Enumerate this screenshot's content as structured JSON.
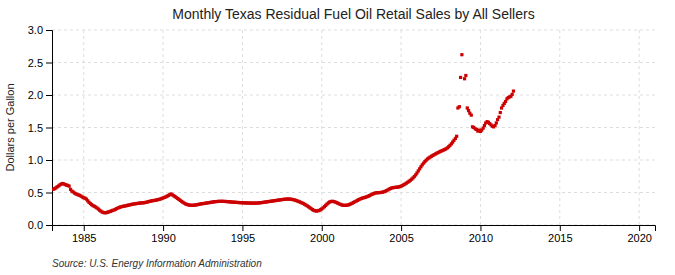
{
  "chart_data": {
    "type": "scatter",
    "title": "Monthly Texas Residual Fuel Oil Retail Sales by All Sellers",
    "ylabel": "Dollars per Gallon",
    "annotation": "Source: U.S. Energy Information Administration",
    "color": "#cc0000",
    "marker": "square",
    "grid": true,
    "xlim": [
      1983,
      2021
    ],
    "ylim": [
      0.0,
      3.0
    ],
    "xticks": [
      1985,
      1990,
      1995,
      2000,
      2005,
      2010,
      2015,
      2020
    ],
    "yticks": [
      {
        "value": 0.0,
        "label": "0.0"
      },
      0.5,
      {
        "value": 1.0,
        "label": "1.0"
      },
      1.5,
      {
        "value": 2.0,
        "label": "2.0"
      },
      2.5,
      {
        "value": 3.0,
        "label": "3.0"
      }
    ],
    "x": [
      1983.08,
      1983.17,
      1983.25,
      1983.33,
      1983.42,
      1983.5,
      1983.58,
      1983.67,
      1983.75,
      1983.83,
      1983.92,
      1984.0,
      1984.08,
      1984.17,
      1984.25,
      1984.33,
      1984.42,
      1984.5,
      1984.58,
      1984.67,
      1984.75,
      1984.83,
      1984.92,
      1985.0,
      1985.08,
      1985.17,
      1985.25,
      1985.33,
      1985.42,
      1985.5,
      1985.58,
      1985.67,
      1985.75,
      1985.83,
      1985.92,
      1986.0,
      1986.08,
      1986.17,
      1986.25,
      1986.33,
      1986.42,
      1986.5,
      1986.58,
      1986.67,
      1986.75,
      1986.83,
      1986.92,
      1987.0,
      1987.08,
      1987.17,
      1987.25,
      1987.33,
      1987.42,
      1987.5,
      1987.58,
      1987.67,
      1987.75,
      1987.83,
      1987.92,
      1988.0,
      1988.08,
      1988.17,
      1988.25,
      1988.33,
      1988.42,
      1988.5,
      1988.58,
      1988.67,
      1988.75,
      1988.83,
      1988.92,
      1989.0,
      1989.08,
      1989.17,
      1989.25,
      1989.33,
      1989.42,
      1989.5,
      1989.58,
      1989.67,
      1989.75,
      1989.83,
      1989.92,
      1990.0,
      1990.08,
      1990.17,
      1990.25,
      1990.33,
      1990.42,
      1990.5,
      1990.58,
      1990.67,
      1990.75,
      1990.83,
      1990.92,
      1991.0,
      1991.08,
      1991.17,
      1991.25,
      1991.33,
      1991.42,
      1991.5,
      1991.58,
      1991.67,
      1991.75,
      1991.83,
      1991.92,
      1992.0,
      1992.08,
      1992.17,
      1992.25,
      1992.33,
      1992.42,
      1992.5,
      1992.58,
      1992.67,
      1992.75,
      1992.83,
      1992.92,
      1993.0,
      1993.08,
      1993.17,
      1993.25,
      1993.33,
      1993.42,
      1993.5,
      1993.58,
      1993.67,
      1993.75,
      1993.83,
      1993.92,
      1994.0,
      1994.08,
      1994.17,
      1994.25,
      1994.33,
      1994.42,
      1994.5,
      1994.58,
      1994.67,
      1994.75,
      1994.83,
      1994.92,
      1995.0,
      1995.08,
      1995.17,
      1995.25,
      1995.33,
      1995.42,
      1995.5,
      1995.58,
      1995.67,
      1995.75,
      1995.83,
      1995.92,
      1996.0,
      1996.08,
      1996.17,
      1996.25,
      1996.33,
      1996.42,
      1996.5,
      1996.58,
      1996.67,
      1996.75,
      1996.83,
      1996.92,
      1997.0,
      1997.08,
      1997.17,
      1997.25,
      1997.33,
      1997.42,
      1997.5,
      1997.58,
      1997.67,
      1997.75,
      1997.83,
      1997.92,
      1998.0,
      1998.08,
      1998.17,
      1998.25,
      1998.33,
      1998.42,
      1998.5,
      1998.58,
      1998.67,
      1998.75,
      1998.83,
      1998.92,
      1999.0,
      1999.08,
      1999.17,
      1999.25,
      1999.33,
      1999.42,
      1999.5,
      1999.58,
      1999.67,
      1999.75,
      1999.83,
      1999.92,
      2000.0,
      2000.08,
      2000.17,
      2000.25,
      2000.33,
      2000.42,
      2000.5,
      2000.58,
      2000.67,
      2000.75,
      2000.83,
      2000.92,
      2001.0,
      2001.08,
      2001.17,
      2001.25,
      2001.33,
      2001.42,
      2001.5,
      2001.58,
      2001.67,
      2001.75,
      2001.83,
      2001.92,
      2002.0,
      2002.08,
      2002.17,
      2002.25,
      2002.33,
      2002.42,
      2002.5,
      2002.58,
      2002.67,
      2002.75,
      2002.83,
      2002.92,
      2003.0,
      2003.08,
      2003.17,
      2003.25,
      2003.33,
      2003.42,
      2003.5,
      2003.58,
      2003.67,
      2003.75,
      2003.83,
      2003.92,
      2004.0,
      2004.08,
      2004.17,
      2004.25,
      2004.33,
      2004.42,
      2004.5,
      2004.58,
      2004.67,
      2004.75,
      2004.83,
      2004.92,
      2005.0,
      2005.08,
      2005.17,
      2005.25,
      2005.33,
      2005.42,
      2005.5,
      2005.58,
      2005.67,
      2005.75,
      2005.83,
      2005.92,
      2006.0,
      2006.08,
      2006.17,
      2006.25,
      2006.33,
      2006.42,
      2006.5,
      2006.58,
      2006.67,
      2006.75,
      2006.83,
      2006.92,
      2007.0,
      2007.08,
      2007.17,
      2007.25,
      2007.33,
      2007.42,
      2007.5,
      2007.58,
      2007.67,
      2007.75,
      2007.83,
      2007.92,
      2008.0,
      2008.08,
      2008.17,
      2008.25,
      2008.33,
      2008.42,
      2008.5,
      2008.58,
      2008.67,
      2008.75,
      2008.83,
      2009.0,
      2009.08,
      2009.17,
      2009.25,
      2009.33,
      2009.42,
      2009.5,
      2009.58,
      2009.67,
      2009.75,
      2009.83,
      2009.92,
      2010.0,
      2010.08,
      2010.17,
      2010.25,
      2010.33,
      2010.42,
      2010.5,
      2010.58,
      2010.67,
      2010.75,
      2010.83,
      2010.92,
      2011.0,
      2011.08,
      2011.17,
      2011.25,
      2011.33,
      2011.42,
      2011.5,
      2011.58,
      2011.67,
      2011.75,
      2011.83,
      2011.92,
      2012.0,
      2012.08
    ],
    "values": [
      0.549,
      0.559,
      0.572,
      0.588,
      0.601,
      0.618,
      0.63,
      0.638,
      0.632,
      0.621,
      0.614,
      0.608,
      0.598,
      0.548,
      0.521,
      0.509,
      0.491,
      0.48,
      0.47,
      0.462,
      0.456,
      0.443,
      0.43,
      0.419,
      0.413,
      0.398,
      0.372,
      0.349,
      0.33,
      0.313,
      0.298,
      0.288,
      0.276,
      0.262,
      0.246,
      0.228,
      0.213,
      0.198,
      0.192,
      0.187,
      0.19,
      0.196,
      0.202,
      0.209,
      0.218,
      0.225,
      0.232,
      0.241,
      0.253,
      0.263,
      0.271,
      0.278,
      0.284,
      0.289,
      0.292,
      0.296,
      0.302,
      0.306,
      0.31,
      0.316,
      0.32,
      0.324,
      0.327,
      0.33,
      0.333,
      0.336,
      0.338,
      0.34,
      0.342,
      0.344,
      0.349,
      0.353,
      0.359,
      0.364,
      0.37,
      0.374,
      0.377,
      0.38,
      0.384,
      0.389,
      0.394,
      0.4,
      0.408,
      0.416,
      0.424,
      0.432,
      0.443,
      0.454,
      0.466,
      0.478,
      0.464,
      0.451,
      0.437,
      0.422,
      0.408,
      0.394,
      0.379,
      0.363,
      0.349,
      0.336,
      0.325,
      0.316,
      0.31,
      0.306,
      0.304,
      0.303,
      0.304,
      0.306,
      0.309,
      0.313,
      0.318,
      0.322,
      0.326,
      0.329,
      0.332,
      0.335,
      0.338,
      0.342,
      0.345,
      0.348,
      0.352,
      0.355,
      0.358,
      0.36,
      0.362,
      0.363,
      0.364,
      0.364,
      0.364,
      0.363,
      0.362,
      0.361,
      0.359,
      0.357,
      0.355,
      0.353,
      0.352,
      0.35,
      0.349,
      0.347,
      0.346,
      0.344,
      0.343,
      0.342,
      0.341,
      0.34,
      0.339,
      0.339,
      0.338,
      0.338,
      0.337,
      0.337,
      0.337,
      0.337,
      0.338,
      0.339,
      0.341,
      0.343,
      0.346,
      0.349,
      0.352,
      0.355,
      0.358,
      0.361,
      0.364,
      0.367,
      0.37,
      0.373,
      0.376,
      0.379,
      0.382,
      0.385,
      0.388,
      0.391,
      0.394,
      0.396,
      0.398,
      0.399,
      0.399,
      0.398,
      0.396,
      0.392,
      0.387,
      0.381,
      0.374,
      0.366,
      0.358,
      0.349,
      0.34,
      0.33,
      0.319,
      0.307,
      0.294,
      0.28,
      0.266,
      0.251,
      0.237,
      0.225,
      0.218,
      0.215,
      0.218,
      0.224,
      0.234,
      0.247,
      0.263,
      0.282,
      0.302,
      0.322,
      0.34,
      0.354,
      0.362,
      0.364,
      0.361,
      0.355,
      0.346,
      0.337,
      0.327,
      0.318,
      0.31,
      0.305,
      0.302,
      0.302,
      0.304,
      0.309,
      0.316,
      0.325,
      0.335,
      0.346,
      0.357,
      0.368,
      0.379,
      0.39,
      0.4,
      0.408,
      0.415,
      0.421,
      0.427,
      0.434,
      0.442,
      0.452,
      0.462,
      0.472,
      0.481,
      0.489,
      0.494,
      0.497,
      0.498,
      0.499,
      0.501,
      0.505,
      0.511,
      0.519,
      0.529,
      0.54,
      0.552,
      0.562,
      0.57,
      0.575,
      0.578,
      0.58,
      0.582,
      0.585,
      0.59,
      0.598,
      0.608,
      0.619,
      0.631,
      0.644,
      0.658,
      0.672,
      0.688,
      0.705,
      0.724,
      0.746,
      0.771,
      0.8,
      0.832,
      0.865,
      0.896,
      0.925,
      0.952,
      0.976,
      0.997,
      1.016,
      1.031,
      1.045,
      1.058,
      1.07,
      1.082,
      1.093,
      1.104,
      1.115,
      1.125,
      1.135,
      1.144,
      1.153,
      1.162,
      1.173,
      1.187,
      1.204,
      1.225,
      1.249,
      1.275,
      1.302,
      1.332,
      1.365,
      1.8,
      1.82,
      2.27,
      2.62,
      2.25,
      2.3,
      1.8,
      1.76,
      1.72,
      1.69,
      1.51,
      1.5,
      1.48,
      1.47,
      1.445,
      1.46,
      1.44,
      1.46,
      1.49,
      1.53,
      1.57,
      1.59,
      1.58,
      1.56,
      1.54,
      1.52,
      1.51,
      1.53,
      1.57,
      1.62,
      1.66,
      1.73,
      1.8,
      1.84,
      1.87,
      1.9,
      1.94,
      1.96,
      1.97,
      1.98,
      2.01,
      2.06
    ]
  }
}
